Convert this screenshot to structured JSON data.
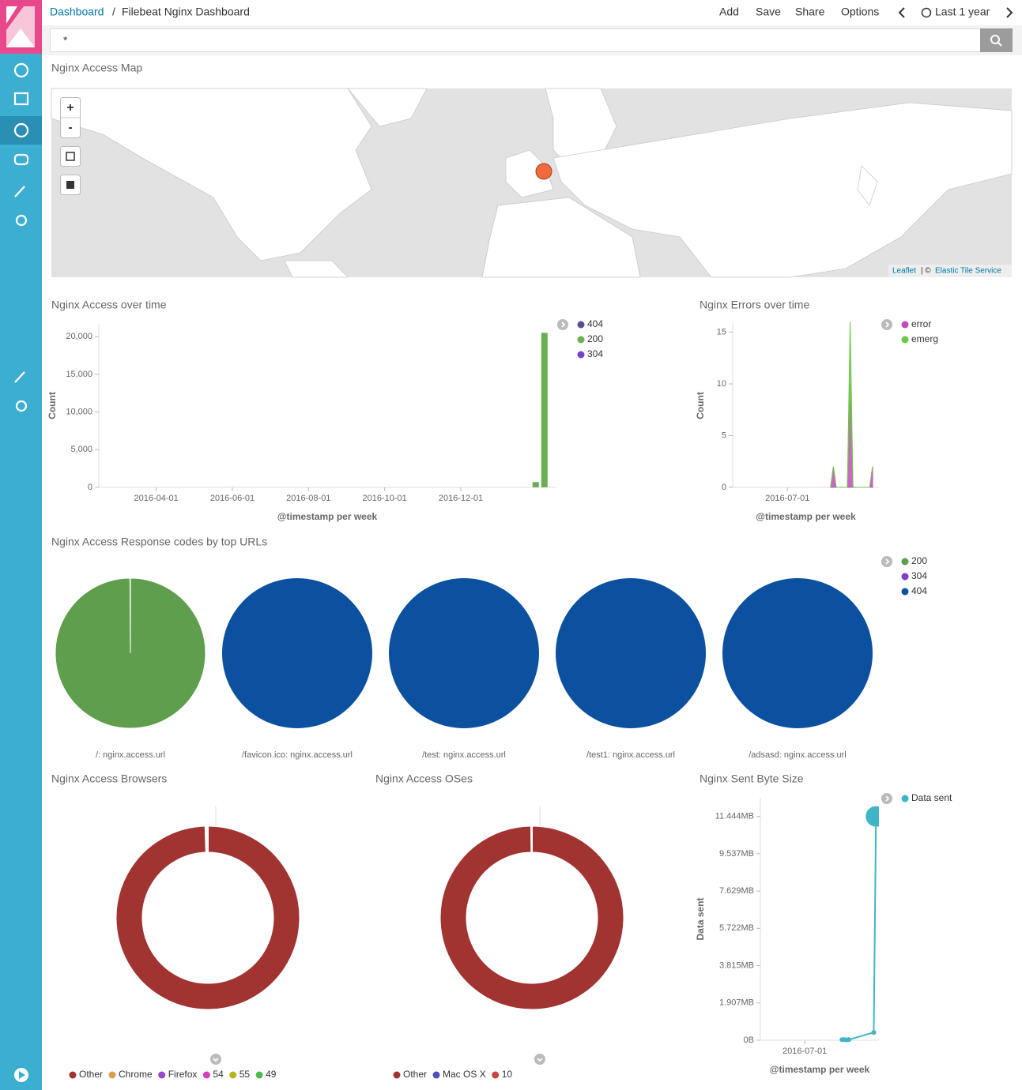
{
  "header": {
    "breadcrumb": "Dashboard",
    "separator": "/",
    "title": "Filebeat Nginx Dashboard",
    "actions": [
      "Add",
      "Save",
      "Share",
      "Options"
    ],
    "time_range": "Last 1 year"
  },
  "search": {
    "query": "*"
  },
  "map": {
    "title": "Nginx Access Map",
    "zoom_in": "+",
    "zoom_out": "-",
    "attribution": [
      "Leaflet",
      "| ©",
      "Elastic Tile Service"
    ]
  },
  "access_over_time": {
    "type": "bar",
    "title": "Nginx Access over time",
    "x_label": "@timestamp per week",
    "y_label": "Count",
    "xlim": [
      "2016-02-15",
      "2017-02-15"
    ],
    "xticks": [
      "2016-04-01",
      "2016-06-01",
      "2016-08-01",
      "2016-10-01",
      "2016-12-01"
    ],
    "ylim": [
      0,
      21700
    ],
    "yticks": [
      0,
      {
        "value": 5000,
        "label": "5,000"
      },
      {
        "value": 10000,
        "label": "10,000"
      },
      {
        "value": 15000,
        "label": "15,000"
      },
      {
        "value": 20000,
        "label": "20,000"
      }
    ],
    "x": [
      "2017-01-30",
      "2017-02-06"
    ],
    "series": [
      {
        "name": "404",
        "color": "#5b4b91",
        "values": [
          null,
          null
        ]
      },
      {
        "name": "200",
        "color": "#6aaf51",
        "values": [
          700,
          20500
        ]
      },
      {
        "name": "304",
        "color": "#7c3fca",
        "values": [
          null,
          null
        ]
      }
    ]
  },
  "errors_over_time": {
    "type": "area",
    "title": "Nginx Errors over time",
    "x_label": "@timestamp per week",
    "y_label": "Count",
    "xlim": [
      "2016-02-15",
      "2017-02-15"
    ],
    "xticks": [
      "2016-07-01"
    ],
    "ylim": [
      0,
      15.8
    ],
    "yticks": [
      0,
      5,
      10,
      15
    ],
    "x": [
      "2016-10-17",
      "2016-10-24",
      "2016-10-31",
      "2016-11-28",
      "2016-12-05",
      "2016-12-12",
      "2017-01-23",
      "2017-01-30"
    ],
    "series": [
      {
        "name": "error",
        "color": "#c14cbb",
        "values": [
          0,
          2,
          0,
          0,
          10,
          0,
          0,
          2
        ]
      },
      {
        "name": "emerg",
        "color": "#6dc846",
        "values": [
          0,
          0,
          0,
          0,
          6,
          0,
          0,
          0
        ]
      }
    ]
  },
  "response_codes": {
    "type": "pie",
    "title": "Nginx Access Response codes by top URLs",
    "categories": [
      "/: nginx.access.url",
      "/favicon.ico: nginx.access.url",
      "/test: nginx.access.url",
      "/test1: nginx.access.url",
      "/adsasd: nginx.access.url"
    ],
    "series": [
      {
        "name": "200",
        "color": "#5e9e4d",
        "values": [
          99.9,
          null,
          null,
          null,
          null
        ]
      },
      {
        "name": "304",
        "color": "#7c3fca",
        "values": [
          0.1,
          null,
          null,
          null,
          null
        ]
      },
      {
        "name": "404",
        "color": "#0b51a0",
        "values": [
          null,
          100,
          100,
          100,
          100
        ]
      }
    ]
  },
  "browsers": {
    "type": "donut",
    "title": "Nginx Access Browsers",
    "categories": [
      "Other",
      "Chrome",
      "Firefox",
      "54",
      "55",
      "49"
    ],
    "values": [
      99.5,
      0.1,
      0.1,
      0.1,
      0.1,
      0.1
    ],
    "colors": [
      "#a13331",
      "#e09b52",
      "#9d44d1",
      "#d83ebf",
      "#b9b31d",
      "#4cbb4c"
    ]
  },
  "oses": {
    "type": "donut",
    "title": "Nginx Access OSes",
    "categories": [
      "Other",
      "Mac OS X",
      "10"
    ],
    "values": [
      99.8,
      0.1,
      0.1
    ],
    "colors": [
      "#a13331",
      "#4a4fc0",
      "#c9473b"
    ]
  },
  "sent_bytes": {
    "type": "line",
    "title": "Nginx Sent Byte Size",
    "x_label": "@timestamp per week",
    "y_label": "Data sent",
    "xlim": [
      "2016-02-15",
      "2017-02-15"
    ],
    "xticks": [
      "2016-07-01"
    ],
    "ylim": [
      0,
      13000000
    ],
    "yticks": [
      {
        "value": 0,
        "label": "0B"
      },
      {
        "value": 2000000,
        "label": "1.907MB"
      },
      {
        "value": 4000000,
        "label": "3.815MB"
      },
      {
        "value": 6000000,
        "label": "5.722MB"
      },
      {
        "value": 8000000,
        "label": "7.629MB"
      },
      {
        "value": 10000000,
        "label": "9.537MB"
      },
      {
        "value": 12000000,
        "label": "11.444MB"
      }
    ],
    "x": [
      "2016-10-24",
      "2016-10-31",
      "2016-11-07",
      "2016-11-14",
      "2017-01-30",
      "2017-02-06"
    ],
    "series": [
      {
        "name": "Data sent",
        "color": "#3fb5c6",
        "values": [
          30000,
          30000,
          20000,
          30000,
          420000,
          12000000
        ]
      }
    ]
  }
}
